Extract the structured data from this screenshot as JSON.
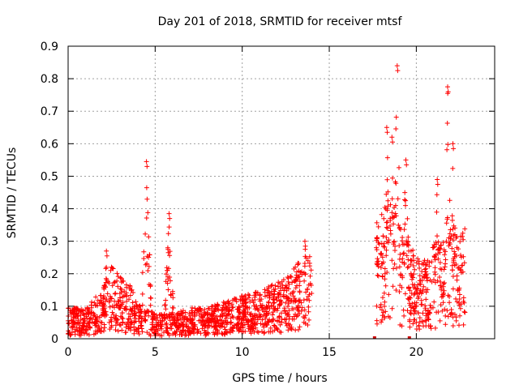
{
  "chart_data": {
    "type": "scatter",
    "title": "Day 201 of 2018, SRMTID for receiver mtsf",
    "xlabel": "GPS time / hours",
    "ylabel": "SRMTID / TECUs",
    "xlim": [
      0,
      24.5
    ],
    "ylim": [
      0,
      0.9
    ],
    "x_ticks": [
      "0",
      "5",
      "10",
      "15",
      "20"
    ],
    "x_tick_values": [
      0,
      5,
      10,
      15,
      20
    ],
    "y_ticks": [
      "0",
      "0.1",
      "0.2",
      "0.3",
      "0.4",
      "0.5",
      "0.6",
      "0.7",
      "0.8",
      "0.9"
    ],
    "y_tick_values": [
      0,
      0.1,
      0.2,
      0.3,
      0.4,
      0.5,
      0.6,
      0.7,
      0.8,
      0.9
    ],
    "grid": true,
    "marker": "+",
    "color": "#ff0000",
    "series": [
      {
        "name": "SRMTID",
        "segments": [
          {
            "start": 0.0,
            "end": 14.0,
            "note": "dense continuous data"
          },
          {
            "start": 17.7,
            "end": 22.8,
            "note": "dense continuous data"
          }
        ],
        "baseline": [
          [
            0.0,
            0.05
          ],
          [
            1.0,
            0.05
          ],
          [
            2.0,
            0.08
          ],
          [
            2.5,
            0.12
          ],
          [
            3.0,
            0.1
          ],
          [
            3.5,
            0.09
          ],
          [
            4.0,
            0.06
          ],
          [
            5.0,
            0.04
          ],
          [
            6.0,
            0.04
          ],
          [
            7.0,
            0.05
          ],
          [
            8.0,
            0.05
          ],
          [
            9.0,
            0.06
          ],
          [
            10.0,
            0.07
          ],
          [
            11.0,
            0.08
          ],
          [
            12.0,
            0.09
          ],
          [
            13.0,
            0.12
          ],
          [
            14.0,
            0.14
          ],
          [
            17.7,
            0.2
          ],
          [
            18.5,
            0.22
          ],
          [
            19.5,
            0.15
          ],
          [
            20.5,
            0.13
          ],
          [
            21.5,
            0.18
          ],
          [
            22.8,
            0.18
          ]
        ],
        "peaks": [
          {
            "x": 4.5,
            "y": 0.545
          },
          {
            "x": 5.8,
            "y": 0.385
          },
          {
            "x": 2.2,
            "y": 0.27
          },
          {
            "x": 13.6,
            "y": 0.3
          },
          {
            "x": 18.3,
            "y": 0.65
          },
          {
            "x": 18.6,
            "y": 0.62
          },
          {
            "x": 18.9,
            "y": 0.84
          },
          {
            "x": 19.4,
            "y": 0.55
          },
          {
            "x": 21.8,
            "y": 0.775
          },
          {
            "x": 22.1,
            "y": 0.6
          },
          {
            "x": 21.2,
            "y": 0.49
          }
        ],
        "zero_markers": [
          17.6,
          19.6
        ]
      }
    ]
  }
}
